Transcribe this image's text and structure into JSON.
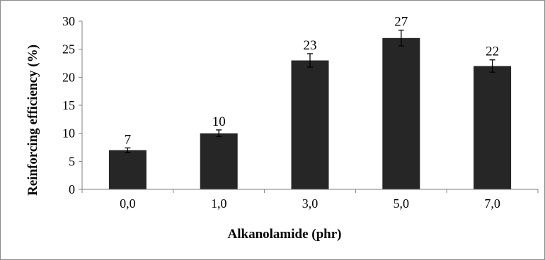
{
  "chart_data": {
    "type": "bar",
    "categories": [
      "0,0",
      "1,0",
      "3,0",
      "5,0",
      "7,0"
    ],
    "values": [
      7,
      10,
      23,
      27,
      22
    ],
    "error": [
      0.4,
      0.6,
      1.2,
      1.4,
      1.1
    ],
    "data_labels": [
      "7",
      "10",
      "23",
      "27",
      "22"
    ],
    "title": "",
    "xlabel": "Alkanolamide (phr)",
    "ylabel": "Reinforcing efficiency (%)",
    "ylim": [
      0,
      30
    ],
    "yticks": [
      "0",
      "5",
      "10",
      "15",
      "20",
      "25",
      "30"
    ],
    "grid": false,
    "legend": "none",
    "bar_color": "#262626"
  }
}
